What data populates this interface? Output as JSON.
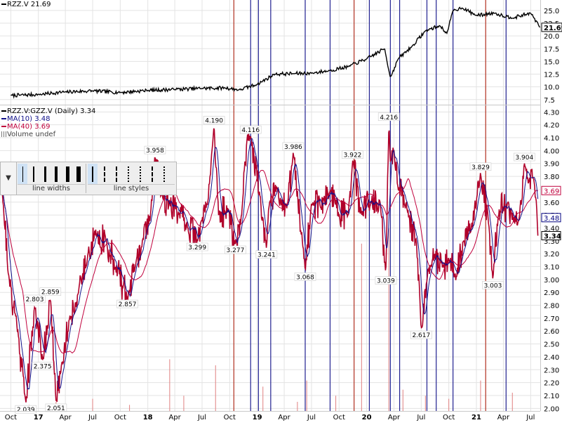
{
  "chart_data": [
    {
      "type": "line",
      "title": "RZZ.V 21.69",
      "series": [
        {
          "name": "RZZ.V",
          "last_value": "21.69",
          "x": [
            "2016-10-01",
            "2017-01-01",
            "2017-04-01",
            "2017-07-01",
            "2017-10-01",
            "2018-01-01",
            "2018-04-01",
            "2018-07-01",
            "2018-09-15",
            "2018-11-01",
            "2019-01-01",
            "2019-03-01",
            "2019-05-01",
            "2019-07-01",
            "2019-09-01",
            "2019-11-01",
            "2020-01-01",
            "2020-03-01",
            "2020-03-20",
            "2020-04-15",
            "2020-06-01",
            "2020-07-15",
            "2020-09-01",
            "2020-09-25",
            "2020-10-15",
            "2020-11-15",
            "2021-01-01",
            "2021-03-01",
            "2021-05-01",
            "2021-07-01",
            "2021-08-01"
          ],
          "values": [
            8.3,
            8.5,
            9.0,
            9.2,
            8.9,
            9.3,
            9.5,
            9.7,
            9.8,
            9.4,
            10.5,
            12.5,
            12.6,
            12.7,
            13.2,
            14.0,
            15.5,
            17.5,
            11.8,
            15.5,
            18.0,
            21.0,
            22.0,
            20.5,
            25.0,
            25.5,
            24.0,
            24.5,
            23.5,
            24.5,
            21.69
          ]
        }
      ],
      "yticks": [
        "7.5",
        "10.0",
        "12.5",
        "15.0",
        "17.5",
        "20.0",
        "22.5",
        "25.0"
      ],
      "ylim": [
        6.5,
        26.5
      ],
      "grid": true
    },
    {
      "type": "line",
      "title": "RZZ.V:GZZ.V (Daily) 3.34",
      "series": [
        {
          "name": "RZZ.V:GZZ.V (Daily)",
          "last_value": "3.34",
          "color": "#c00020",
          "x": [
            "2016-09-01",
            "2016-09-25",
            "2016-10-25",
            "2016-11-20",
            "2016-12-20",
            "2017-01-15",
            "2017-02-10",
            "2017-03-01",
            "2017-03-20",
            "2017-04-15",
            "2017-05-15",
            "2017-06-15",
            "2017-07-15",
            "2017-08-15",
            "2017-09-15",
            "2017-10-25",
            "2017-11-20",
            "2017-12-15",
            "2018-01-10",
            "2018-01-25",
            "2018-02-15",
            "2018-03-15",
            "2018-04-15",
            "2018-05-15",
            "2018-06-15",
            "2018-07-20",
            "2018-08-10",
            "2018-08-25",
            "2018-09-25",
            "2018-10-20",
            "2018-11-10",
            "2018-11-20",
            "2018-12-10",
            "2019-01-10",
            "2019-02-01",
            "2019-02-10",
            "2019-03-10",
            "2019-04-10",
            "2019-05-01",
            "2019-06-01",
            "2019-06-10",
            "2019-07-01",
            "2019-08-01",
            "2019-09-01",
            "2019-10-01",
            "2019-11-01",
            "2019-11-15",
            "2019-12-15",
            "2020-01-15",
            "2020-02-15",
            "2020-03-05",
            "2020-03-15",
            "2020-03-20",
            "2020-04-01",
            "2020-04-15",
            "2020-05-15",
            "2020-06-15",
            "2020-07-01",
            "2020-07-20",
            "2020-08-01",
            "2020-08-15",
            "2020-09-10",
            "2020-10-01",
            "2020-10-25",
            "2020-11-20",
            "2020-12-15",
            "2021-01-15",
            "2021-02-10",
            "2021-02-25",
            "2021-03-15",
            "2021-04-15",
            "2021-05-05",
            "2021-05-25",
            "2021-06-10",
            "2021-06-25",
            "2021-07-10",
            "2021-07-20",
            "2021-07-25"
          ],
          "values": [
            3.75,
            3.0,
            2.6,
            2.039,
            2.803,
            2.375,
            2.859,
            2.051,
            2.35,
            2.7,
            2.9,
            3.2,
            3.35,
            3.3,
            3.1,
            2.857,
            3.1,
            3.3,
            3.5,
            3.958,
            3.65,
            3.6,
            3.5,
            3.4,
            3.299,
            3.6,
            4.19,
            3.5,
            3.55,
            3.277,
            3.5,
            3.9,
            4.116,
            3.65,
            3.241,
            3.6,
            3.7,
            3.55,
            3.986,
            3.3,
            3.068,
            3.6,
            3.55,
            3.7,
            3.5,
            3.5,
            3.922,
            3.5,
            3.6,
            3.6,
            3.039,
            4.216,
            3.9,
            4.0,
            3.7,
            3.55,
            3.3,
            2.617,
            3.0,
            3.1,
            3.2,
            3.1,
            3.15,
            3.0,
            3.3,
            3.4,
            3.829,
            3.45,
            3.003,
            3.5,
            3.6,
            3.45,
            3.5,
            3.904,
            3.75,
            3.8,
            3.6,
            3.34
          ]
        },
        {
          "name": "MA(10)",
          "last_value": "3.48",
          "color": "#000080"
        },
        {
          "name": "MA(40)",
          "last_value": "3.69",
          "color": "#c0003c"
        },
        {
          "name": "Volume",
          "last_value": "undef",
          "color": "#888888"
        }
      ],
      "annotations": [
        {
          "x": "2016-11-20",
          "y": 2.039,
          "label": "2.039"
        },
        {
          "x": "2016-12-20",
          "y": 2.803,
          "label": "2.803"
        },
        {
          "x": "2017-01-15",
          "y": 2.375,
          "label": "2.375"
        },
        {
          "x": "2017-02-10",
          "y": 2.859,
          "label": "2.859"
        },
        {
          "x": "2017-03-01",
          "y": 2.051,
          "label": "2.051"
        },
        {
          "x": "2017-10-25",
          "y": 2.857,
          "label": "2.857"
        },
        {
          "x": "2018-01-25",
          "y": 3.958,
          "label": "3.958"
        },
        {
          "x": "2018-06-15",
          "y": 3.299,
          "label": "3.299"
        },
        {
          "x": "2018-08-10",
          "y": 4.19,
          "label": "4.190"
        },
        {
          "x": "2018-10-20",
          "y": 3.277,
          "label": "3.277"
        },
        {
          "x": "2018-12-10",
          "y": 4.116,
          "label": "4.116"
        },
        {
          "x": "2019-02-01",
          "y": 3.241,
          "label": "3.241"
        },
        {
          "x": "2019-05-01",
          "y": 3.986,
          "label": "3.986"
        },
        {
          "x": "2019-06-10",
          "y": 3.068,
          "label": "3.068"
        },
        {
          "x": "2019-11-15",
          "y": 3.922,
          "label": "3.922"
        },
        {
          "x": "2020-03-05",
          "y": 3.039,
          "label": "3.039"
        },
        {
          "x": "2020-03-15",
          "y": 4.216,
          "label": "4.216"
        },
        {
          "x": "2020-07-01",
          "y": 2.617,
          "label": "2.617"
        },
        {
          "x": "2021-01-15",
          "y": 3.829,
          "label": "3.829"
        },
        {
          "x": "2021-02-25",
          "y": 3.003,
          "label": "3.003"
        },
        {
          "x": "2021-06-10",
          "y": 3.904,
          "label": "3.904"
        }
      ],
      "yticks": [
        "2.00",
        "2.10",
        "2.20",
        "2.30",
        "2.40",
        "2.50",
        "2.60",
        "2.70",
        "2.80",
        "2.90",
        "3.00",
        "3.10",
        "3.20",
        "3.30",
        "3.40",
        "3.50",
        "3.60",
        "3.70",
        "3.80",
        "3.90",
        "4.00",
        "4.10",
        "4.20",
        "4.30"
      ],
      "ylim": [
        1.98,
        4.34
      ],
      "last_labels": [
        {
          "value": 3.69,
          "label": "3.69",
          "color": "#c0003c"
        },
        {
          "value": 3.48,
          "label": "3.48",
          "color": "#000080"
        },
        {
          "value": 3.34,
          "label": "3.34",
          "color": "#000000"
        }
      ],
      "xticks": [
        {
          "date": "2016-10-01",
          "label": "Oct",
          "bold": false
        },
        {
          "date": "2017-01-01",
          "label": "17",
          "bold": true
        },
        {
          "date": "2017-04-01",
          "label": "Apr",
          "bold": false
        },
        {
          "date": "2017-07-01",
          "label": "Jul",
          "bold": false
        },
        {
          "date": "2017-10-01",
          "label": "Oct",
          "bold": false
        },
        {
          "date": "2018-01-01",
          "label": "18",
          "bold": true
        },
        {
          "date": "2018-04-01",
          "label": "Apr",
          "bold": false
        },
        {
          "date": "2018-07-01",
          "label": "Jul",
          "bold": false
        },
        {
          "date": "2018-10-01",
          "label": "Oct",
          "bold": false
        },
        {
          "date": "2019-01-01",
          "label": "19",
          "bold": true
        },
        {
          "date": "2019-04-01",
          "label": "Apr",
          "bold": false
        },
        {
          "date": "2019-07-01",
          "label": "Jul",
          "bold": false
        },
        {
          "date": "2019-10-01",
          "label": "Oct",
          "bold": false
        },
        {
          "date": "2020-01-01",
          "label": "20",
          "bold": true
        },
        {
          "date": "2020-04-01",
          "label": "Apr",
          "bold": false
        },
        {
          "date": "2020-07-01",
          "label": "Jul",
          "bold": false
        },
        {
          "date": "2020-10-01",
          "label": "Oct",
          "bold": false
        },
        {
          "date": "2021-01-01",
          "label": "21",
          "bold": true
        },
        {
          "date": "2021-04-01",
          "label": "Apr",
          "bold": false
        },
        {
          "date": "2021-07-01",
          "label": "Jul",
          "bold": false
        }
      ],
      "grid": true
    }
  ],
  "event_markers": [
    {
      "date": "2018-10-15",
      "color": "#b03020"
    },
    {
      "date": "2018-12-10",
      "color": "#202090"
    },
    {
      "date": "2019-01-05",
      "color": "#202090"
    },
    {
      "date": "2019-02-15",
      "color": "#202090"
    },
    {
      "date": "2019-06-10",
      "color": "#202090"
    },
    {
      "date": "2019-09-01",
      "color": "#202090"
    },
    {
      "date": "2019-11-20",
      "color": "#b03020"
    },
    {
      "date": "2020-01-10",
      "color": "#202090"
    },
    {
      "date": "2020-03-20",
      "color": "#202090"
    },
    {
      "date": "2020-04-20",
      "color": "#202090"
    },
    {
      "date": "2020-07-20",
      "color": "#202090"
    },
    {
      "date": "2020-08-20",
      "color": "#202090"
    },
    {
      "date": "2020-10-15",
      "color": "#202090"
    },
    {
      "date": "2021-02-01",
      "color": "#b03020"
    },
    {
      "date": "2021-04-10",
      "color": "#202090"
    }
  ],
  "volume_bars": [
    {
      "date": "2016-12-01",
      "height": 0.02
    },
    {
      "date": "2017-03-01",
      "height": 0.03
    },
    {
      "date": "2017-07-01",
      "height": 0.04
    },
    {
      "date": "2017-11-01",
      "height": 0.02
    },
    {
      "date": "2018-03-15",
      "height": 0.17
    },
    {
      "date": "2018-05-01",
      "height": 0.05
    },
    {
      "date": "2018-08-15",
      "height": 0.15
    },
    {
      "date": "2019-01-20",
      "height": 0.08
    },
    {
      "date": "2019-05-15",
      "height": 0.03
    },
    {
      "date": "2019-06-15",
      "height": 0.1
    },
    {
      "date": "2019-09-20",
      "height": 0.05
    },
    {
      "date": "2019-12-15",
      "height": 0.55
    },
    {
      "date": "2020-03-15",
      "height": 0.6
    },
    {
      "date": "2020-05-01",
      "height": 0.07
    },
    {
      "date": "2020-07-15",
      "height": 0.05
    },
    {
      "date": "2020-10-01",
      "height": 0.04
    },
    {
      "date": "2021-01-15",
      "height": 0.1
    },
    {
      "date": "2021-05-01",
      "height": 0.06
    }
  ],
  "toolbar": {
    "line_widths_label": "line widths",
    "line_styles_label": "line styles",
    "arrow": "▼",
    "selected_width_index": 0,
    "selected_style_index": 0
  },
  "colors": {
    "price": "#000000",
    "ratio": "#b0002a",
    "ma10": "#10108a",
    "ma40": "#c0003c",
    "grid": "#e3e3e3"
  }
}
